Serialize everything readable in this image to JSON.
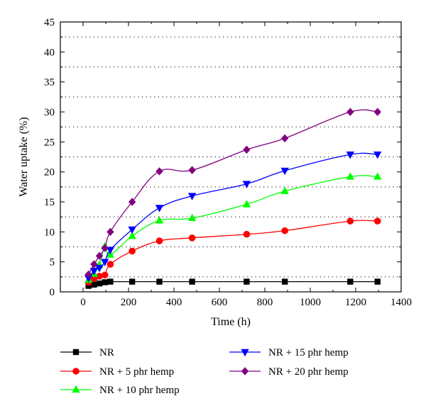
{
  "chart_data": {
    "type": "line",
    "xlabel": "Time (h)",
    "ylabel": "Water uptake (%)",
    "xlim": [
      -100,
      1400
    ],
    "ylim": [
      0,
      45
    ],
    "x_ticks": [
      0,
      200,
      400,
      600,
      800,
      1000,
      1200,
      1400
    ],
    "y_ticks": [
      0,
      5,
      10,
      15,
      20,
      25,
      30,
      35,
      40,
      45
    ],
    "grid": "horizontal dotted at minor y ticks",
    "legend_position": "bottom",
    "series": [
      {
        "name": "NR",
        "marker": "square",
        "color": "#000000",
        "x": [
          24,
          48,
          72,
          96,
          120,
          216,
          336,
          480,
          720,
          888,
          1176,
          1296
        ],
        "y": [
          1.0,
          1.2,
          1.4,
          1.6,
          1.7,
          1.7,
          1.7,
          1.7,
          1.7,
          1.7,
          1.7,
          1.7
        ]
      },
      {
        "name": "NR + 5 phr hemp",
        "marker": "circle",
        "color": "#ff0000",
        "x": [
          24,
          48,
          72,
          96,
          120,
          216,
          336,
          480,
          720,
          888,
          1176,
          1296
        ],
        "y": [
          1.6,
          2.2,
          2.6,
          2.8,
          4.6,
          6.8,
          8.5,
          9.0,
          9.6,
          10.2,
          11.8,
          11.8
        ]
      },
      {
        "name": "NR + 10 phr hemp",
        "marker": "triangle-up",
        "color": "#00ff00",
        "x": [
          24,
          48,
          72,
          96,
          120,
          216,
          336,
          480,
          720,
          888,
          1176,
          1296
        ],
        "y": [
          2.0,
          3.0,
          4.5,
          7.6,
          6.2,
          9.3,
          11.9,
          12.3,
          14.6,
          16.8,
          19.2,
          19.2
        ]
      },
      {
        "name": "NR + 15 phr hemp",
        "marker": "triangle-down",
        "color": "#0000ff",
        "x": [
          24,
          48,
          72,
          96,
          120,
          216,
          336,
          480,
          720,
          888,
          1176,
          1296
        ],
        "y": [
          2.3,
          3.5,
          4.0,
          5.0,
          7.0,
          10.4,
          14.0,
          16.0,
          18.0,
          20.2,
          22.9,
          22.9
        ]
      },
      {
        "name": "NR + 20 phr hemp",
        "marker": "diamond",
        "color": "#800080",
        "x": [
          24,
          48,
          72,
          96,
          120,
          216,
          336,
          480,
          720,
          888,
          1176,
          1296
        ],
        "y": [
          2.9,
          4.6,
          6.0,
          7.3,
          10.0,
          15.0,
          20.1,
          20.3,
          23.7,
          25.6,
          30.0,
          30.0
        ]
      }
    ]
  }
}
